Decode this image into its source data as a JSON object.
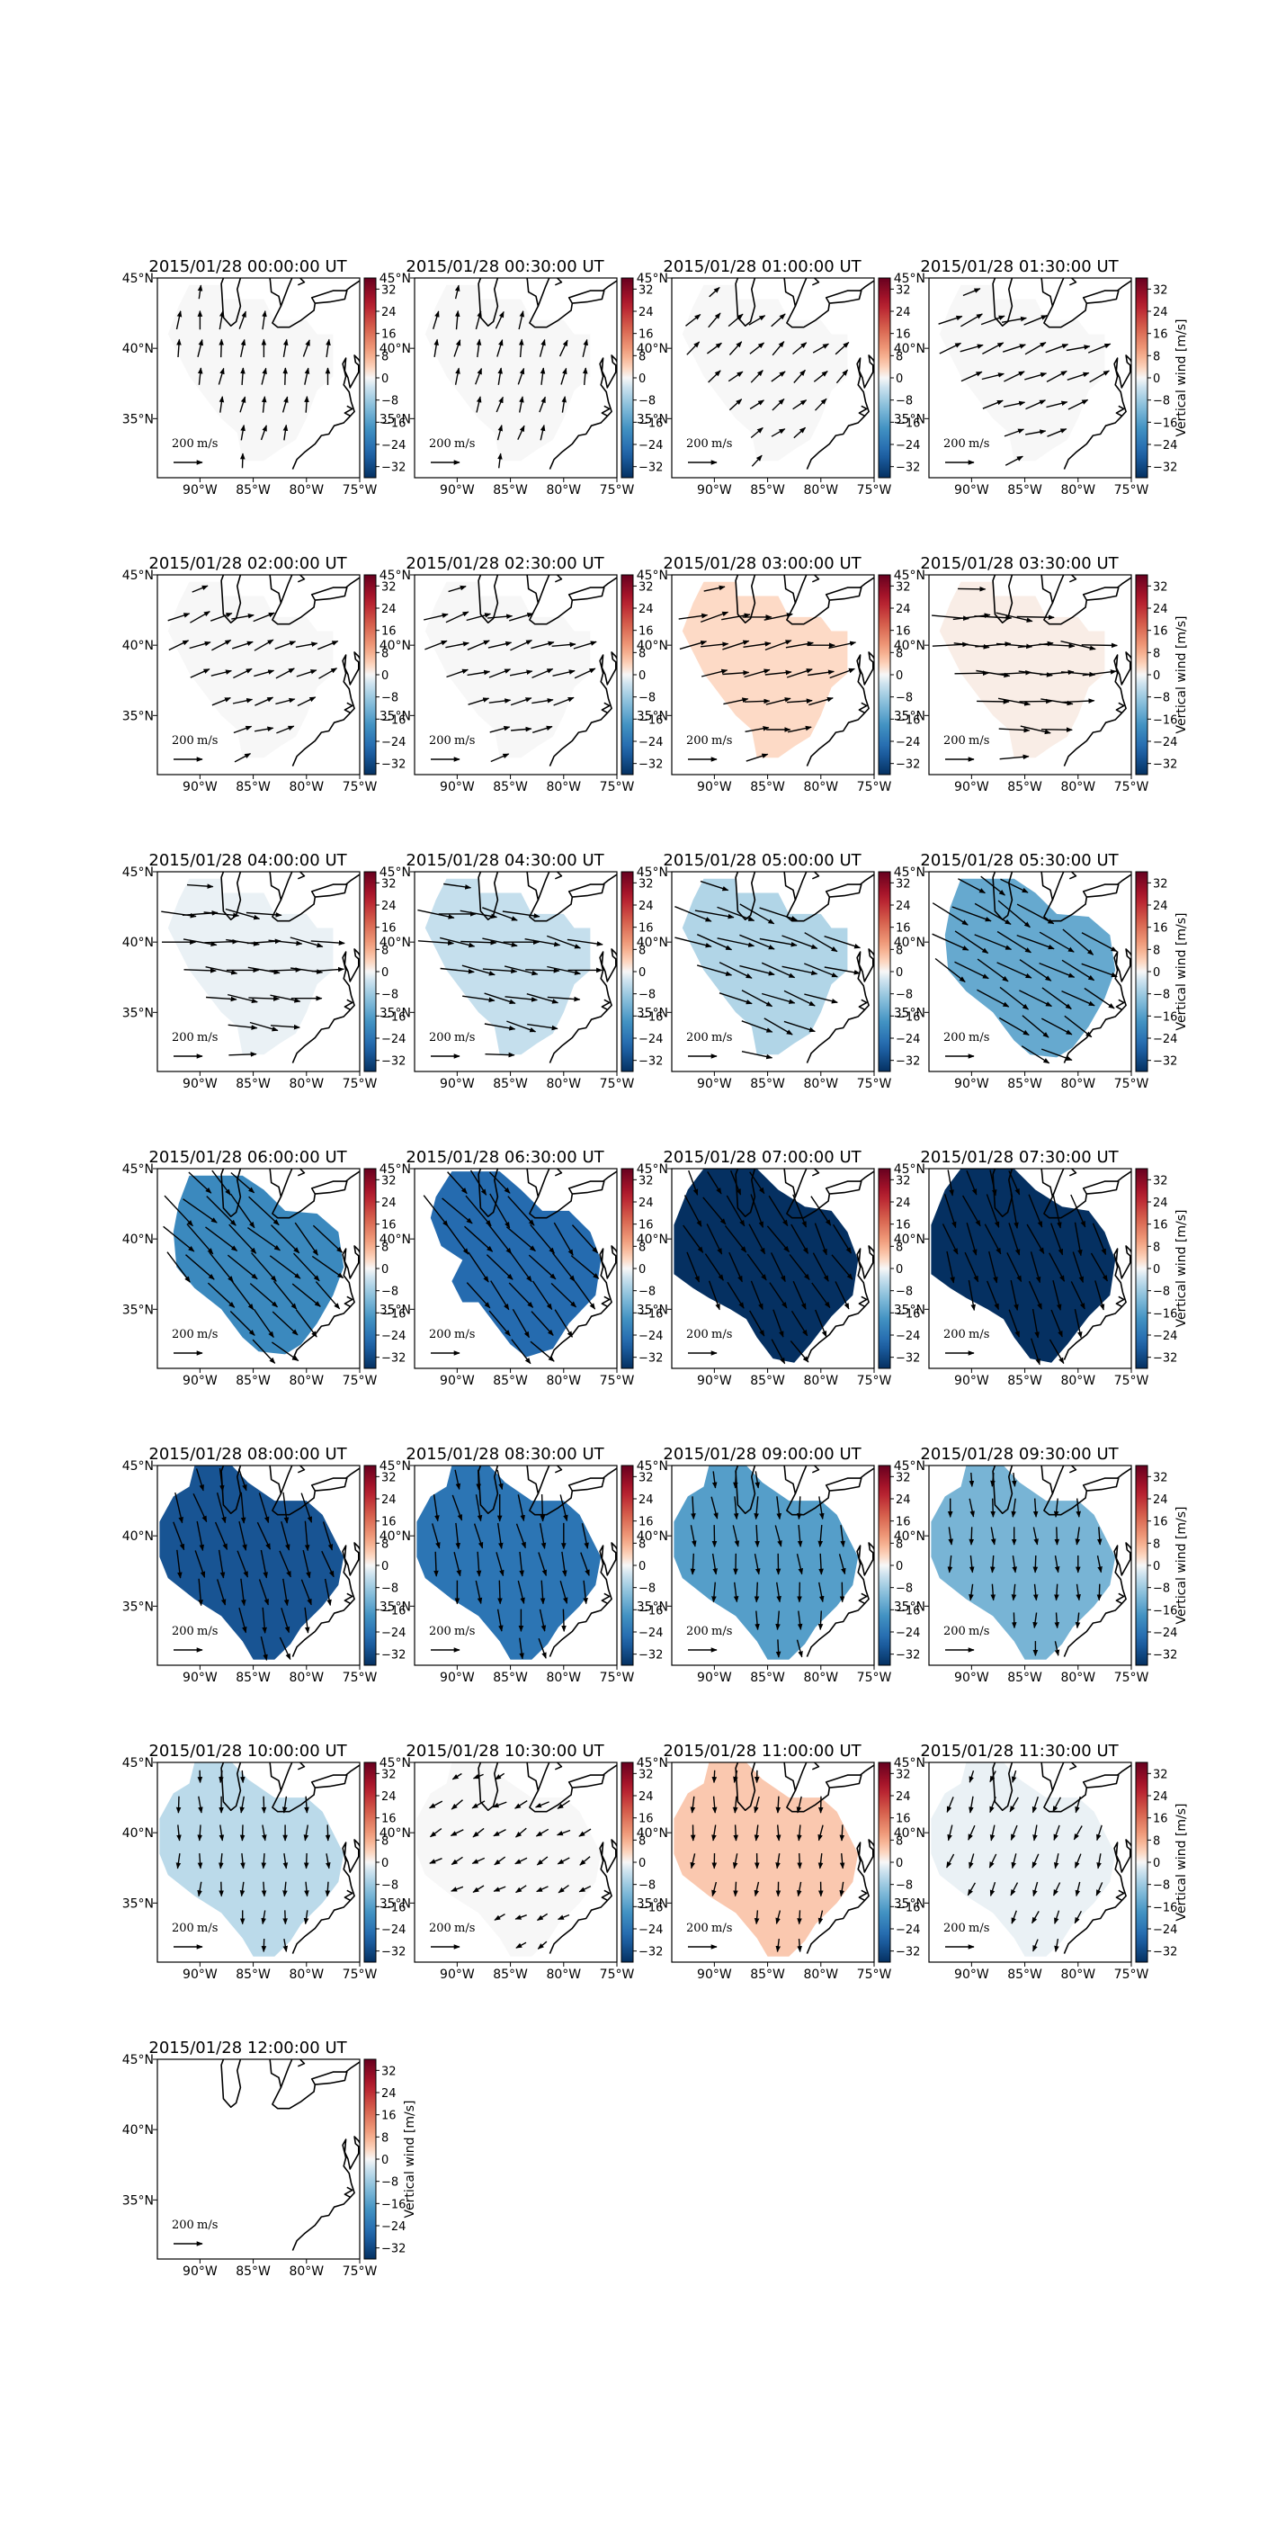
{
  "figure": {
    "title": "",
    "panels_per_row": 4
  },
  "chart_data": {
    "type": "heatmap",
    "subtype": "map with wind vectors",
    "field": "Vertical wind [m/s]",
    "colormap": "RdBu_r",
    "colorbar": {
      "ticks": [
        32,
        24,
        16,
        8,
        0,
        -8,
        -16,
        -24,
        -32
      ],
      "tick_labels": [
        "32",
        "24",
        "16",
        "8",
        "0",
        "−8",
        "−16",
        "−24",
        "−32"
      ],
      "range": [
        -36,
        36
      ],
      "label": "Vertical wind [m/s]"
    },
    "axes": {
      "lon_ticks": [
        -90,
        -85,
        -80,
        -75
      ],
      "lon_tick_labels": [
        "90°W",
        "85°W",
        "80°W",
        "75°W"
      ],
      "lat_ticks": [
        45,
        40,
        35
      ],
      "lat_tick_labels": [
        "45°N",
        "40°N",
        "35°N"
      ],
      "lon_range": [
        -94,
        -75
      ],
      "lat_range": [
        30.8,
        45
      ]
    },
    "reference_vector": {
      "value_label": "200",
      "units_label": "m/s"
    },
    "panels": [
      {
        "title": "2015/01/28 00:00:00 UT",
        "vertical_wind": 0,
        "region": "A",
        "wind_dir": 80,
        "wind_len": 18
      },
      {
        "title": "2015/01/28 00:30:00 UT",
        "vertical_wind": 0,
        "region": "A",
        "wind_dir": 75,
        "wind_len": 18
      },
      {
        "title": "2015/01/28 01:00:00 UT",
        "vertical_wind": 0,
        "region": "A",
        "wind_dir": 40,
        "wind_len": 18
      },
      {
        "title": "2015/01/28 01:30:00 UT",
        "vertical_wind": 0,
        "region": "A",
        "wind_dir": 20,
        "wind_len": 24
      },
      {
        "title": "2015/01/28 02:00:00 UT",
        "vertical_wind": 0,
        "region": "A",
        "wind_dir": 20,
        "wind_len": 22
      },
      {
        "title": "2015/01/28 02:30:00 UT",
        "vertical_wind": 0,
        "region": "A",
        "wind_dir": 15,
        "wind_len": 24
      },
      {
        "title": "2015/01/28 03:00:00 UT",
        "vertical_wind": 3,
        "region": "A",
        "wind_dir": 10,
        "wind_len": 28
      },
      {
        "title": "2015/01/28 03:30:00 UT",
        "vertical_wind": 1,
        "region": "A",
        "wind_dir": -3,
        "wind_len": 36
      },
      {
        "title": "2015/01/28 04:00:00 UT",
        "vertical_wind": -1,
        "region": "A",
        "wind_dir": -6,
        "wind_len": 34
      },
      {
        "title": "2015/01/28 04:30:00 UT",
        "vertical_wind": -4,
        "region": "A",
        "wind_dir": -10,
        "wind_len": 36
      },
      {
        "title": "2015/01/28 05:00:00 UT",
        "vertical_wind": -6,
        "region": "A",
        "wind_dir": -20,
        "wind_len": 38
      },
      {
        "title": "2015/01/28 05:30:00 UT",
        "vertical_wind": -14,
        "region": "B",
        "wind_dir": -30,
        "wind_len": 40
      },
      {
        "title": "2015/01/28 06:00:00 UT",
        "vertical_wind": -20,
        "region": "B",
        "wind_dir": -45,
        "wind_len": 40
      },
      {
        "title": "2015/01/28 06:30:00 UT",
        "vertical_wind": -26,
        "region": "C",
        "wind_dir": -50,
        "wind_len": 38
      },
      {
        "title": "2015/01/28 07:00:00 UT",
        "vertical_wind": -36,
        "region": "D",
        "wind_dir": -60,
        "wind_len": 34
      },
      {
        "title": "2015/01/28 07:30:00 UT",
        "vertical_wind": -36,
        "region": "D",
        "wind_dir": -70,
        "wind_len": 34
      },
      {
        "title": "2015/01/28 08:00:00 UT",
        "vertical_wind": -30,
        "region": "E",
        "wind_dir": -75,
        "wind_len": 30
      },
      {
        "title": "2015/01/28 08:30:00 UT",
        "vertical_wind": -24,
        "region": "E",
        "wind_dir": -80,
        "wind_len": 26
      },
      {
        "title": "2015/01/28 09:00:00 UT",
        "vertical_wind": -16,
        "region": "E",
        "wind_dir": -85,
        "wind_len": 22
      },
      {
        "title": "2015/01/28 09:30:00 UT",
        "vertical_wind": -12,
        "region": "E",
        "wind_dir": -88,
        "wind_len": 18
      },
      {
        "title": "2015/01/28 10:00:00 UT",
        "vertical_wind": -5,
        "region": "E",
        "wind_dir": -90,
        "wind_len": 16
      },
      {
        "title": "2015/01/28 10:30:00 UT",
        "vertical_wind": 0,
        "region": "E",
        "wind_dir": -150,
        "wind_len": 14
      },
      {
        "title": "2015/01/28 11:00:00 UT",
        "vertical_wind": 5,
        "region": "E",
        "wind_dir": -95,
        "wind_len": 16
      },
      {
        "title": "2015/01/28 11:30:00 UT",
        "vertical_wind": -1,
        "region": "E",
        "wind_dir": -110,
        "wind_len": 16
      },
      {
        "title": "2015/01/28 12:00:00 UT",
        "vertical_wind": null,
        "region": "none",
        "wind_dir": 0,
        "wind_len": 0
      }
    ],
    "grid": false,
    "legend": "colorbar right of each panel; full colorbar label on last panel of each row"
  }
}
